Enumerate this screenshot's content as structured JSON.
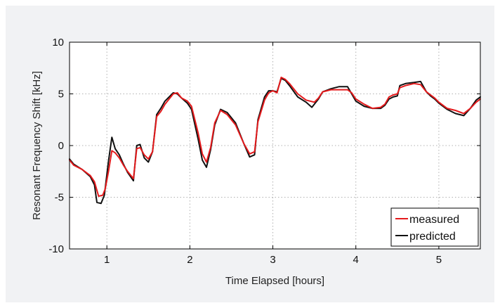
{
  "chart_data": {
    "type": "line",
    "xlabel": "Time Elapsed [hours]",
    "ylabel": "Resonant Frequency Shift [kHz]",
    "xlim": [
      0.55,
      5.5
    ],
    "ylim": [
      -10,
      10
    ],
    "xticks": [
      1,
      2,
      3,
      4,
      5
    ],
    "yticks": [
      -10,
      -5,
      0,
      5,
      10
    ],
    "grid": true,
    "legend_position": "bottom-right",
    "series": [
      {
        "name": "measured",
        "color": "#e41a1c",
        "points": [
          [
            0.55,
            -1.4
          ],
          [
            0.6,
            -1.9
          ],
          [
            0.7,
            -2.3
          ],
          [
            0.8,
            -2.9
          ],
          [
            0.85,
            -3.5
          ],
          [
            0.9,
            -4.9
          ],
          [
            0.95,
            -4.8
          ],
          [
            0.98,
            -4.2
          ],
          [
            1.02,
            -2.5
          ],
          [
            1.06,
            -0.5
          ],
          [
            1.1,
            -0.7
          ],
          [
            1.15,
            -1.2
          ],
          [
            1.2,
            -1.9
          ],
          [
            1.25,
            -2.5
          ],
          [
            1.32,
            -3.2
          ],
          [
            1.36,
            -0.3
          ],
          [
            1.4,
            -0.2
          ],
          [
            1.45,
            -0.9
          ],
          [
            1.5,
            -1.3
          ],
          [
            1.55,
            -0.6
          ],
          [
            1.6,
            2.8
          ],
          [
            1.65,
            3.3
          ],
          [
            1.7,
            4.0
          ],
          [
            1.8,
            5.0
          ],
          [
            1.85,
            5.1
          ],
          [
            1.9,
            4.6
          ],
          [
            1.97,
            4.3
          ],
          [
            2.02,
            3.8
          ],
          [
            2.1,
            1.2
          ],
          [
            2.15,
            -0.8
          ],
          [
            2.2,
            -1.6
          ],
          [
            2.25,
            -0.2
          ],
          [
            2.3,
            2.2
          ],
          [
            2.37,
            3.4
          ],
          [
            2.45,
            3.0
          ],
          [
            2.55,
            2.0
          ],
          [
            2.65,
            0.2
          ],
          [
            2.72,
            -0.8
          ],
          [
            2.78,
            -0.6
          ],
          [
            2.82,
            2.3
          ],
          [
            2.9,
            4.4
          ],
          [
            2.95,
            5.1
          ],
          [
            3.0,
            5.3
          ],
          [
            3.05,
            5.1
          ],
          [
            3.1,
            6.6
          ],
          [
            3.15,
            6.4
          ],
          [
            3.2,
            6.0
          ],
          [
            3.3,
            5.0
          ],
          [
            3.4,
            4.4
          ],
          [
            3.5,
            4.2
          ],
          [
            3.55,
            4.6
          ],
          [
            3.6,
            5.2
          ],
          [
            3.7,
            5.4
          ],
          [
            3.8,
            5.4
          ],
          [
            3.9,
            5.4
          ],
          [
            3.95,
            5.1
          ],
          [
            4.0,
            4.5
          ],
          [
            4.1,
            4.0
          ],
          [
            4.2,
            3.6
          ],
          [
            4.3,
            3.7
          ],
          [
            4.35,
            4.0
          ],
          [
            4.4,
            4.7
          ],
          [
            4.45,
            4.9
          ],
          [
            4.5,
            5.0
          ],
          [
            4.53,
            5.6
          ],
          [
            4.6,
            5.8
          ],
          [
            4.7,
            6.0
          ],
          [
            4.78,
            5.9
          ],
          [
            4.85,
            5.2
          ],
          [
            4.9,
            4.9
          ],
          [
            4.95,
            4.6
          ],
          [
            5.0,
            4.2
          ],
          [
            5.1,
            3.6
          ],
          [
            5.2,
            3.4
          ],
          [
            5.3,
            3.1
          ],
          [
            5.38,
            3.6
          ],
          [
            5.45,
            4.2
          ],
          [
            5.5,
            4.5
          ]
        ]
      },
      {
        "name": "predicted",
        "color": "#111111",
        "points": [
          [
            0.55,
            -1.3
          ],
          [
            0.6,
            -1.8
          ],
          [
            0.7,
            -2.3
          ],
          [
            0.8,
            -3.0
          ],
          [
            0.85,
            -3.8
          ],
          [
            0.88,
            -5.5
          ],
          [
            0.93,
            -5.6
          ],
          [
            0.97,
            -4.8
          ],
          [
            1.02,
            -1.5
          ],
          [
            1.06,
            0.8
          ],
          [
            1.1,
            -0.3
          ],
          [
            1.15,
            -0.9
          ],
          [
            1.2,
            -1.8
          ],
          [
            1.25,
            -2.6
          ],
          [
            1.32,
            -3.4
          ],
          [
            1.36,
            0.0
          ],
          [
            1.4,
            0.1
          ],
          [
            1.45,
            -1.2
          ],
          [
            1.5,
            -1.6
          ],
          [
            1.55,
            -0.6
          ],
          [
            1.6,
            3.0
          ],
          [
            1.65,
            3.6
          ],
          [
            1.7,
            4.3
          ],
          [
            1.8,
            5.1
          ],
          [
            1.85,
            5.0
          ],
          [
            1.9,
            4.6
          ],
          [
            1.97,
            4.1
          ],
          [
            2.02,
            3.5
          ],
          [
            2.1,
            0.6
          ],
          [
            2.15,
            -1.4
          ],
          [
            2.2,
            -2.1
          ],
          [
            2.25,
            -0.4
          ],
          [
            2.3,
            2.0
          ],
          [
            2.37,
            3.5
          ],
          [
            2.45,
            3.2
          ],
          [
            2.55,
            2.2
          ],
          [
            2.65,
            0.2
          ],
          [
            2.72,
            -1.1
          ],
          [
            2.78,
            -0.9
          ],
          [
            2.82,
            2.5
          ],
          [
            2.9,
            4.7
          ],
          [
            2.95,
            5.3
          ],
          [
            3.0,
            5.3
          ],
          [
            3.05,
            5.2
          ],
          [
            3.1,
            6.5
          ],
          [
            3.15,
            6.3
          ],
          [
            3.2,
            5.8
          ],
          [
            3.3,
            4.7
          ],
          [
            3.4,
            4.2
          ],
          [
            3.47,
            3.7
          ],
          [
            3.55,
            4.5
          ],
          [
            3.6,
            5.2
          ],
          [
            3.7,
            5.5
          ],
          [
            3.8,
            5.7
          ],
          [
            3.9,
            5.7
          ],
          [
            3.95,
            5.0
          ],
          [
            4.0,
            4.3
          ],
          [
            4.1,
            3.8
          ],
          [
            4.2,
            3.6
          ],
          [
            4.3,
            3.6
          ],
          [
            4.35,
            3.9
          ],
          [
            4.4,
            4.5
          ],
          [
            4.45,
            4.7
          ],
          [
            4.5,
            4.8
          ],
          [
            4.53,
            5.8
          ],
          [
            4.6,
            6.0
          ],
          [
            4.7,
            6.1
          ],
          [
            4.78,
            6.2
          ],
          [
            4.85,
            5.2
          ],
          [
            4.9,
            4.8
          ],
          [
            4.95,
            4.5
          ],
          [
            5.0,
            4.1
          ],
          [
            5.1,
            3.5
          ],
          [
            5.2,
            3.1
          ],
          [
            5.3,
            2.9
          ],
          [
            5.38,
            3.6
          ],
          [
            5.45,
            4.4
          ],
          [
            5.5,
            4.7
          ]
        ]
      }
    ]
  }
}
